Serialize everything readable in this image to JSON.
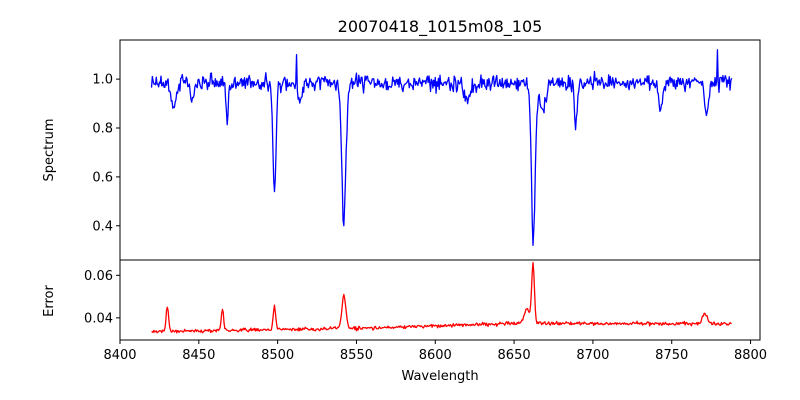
{
  "chart_data": {
    "type": "line",
    "title": "20070418_1015m08_105",
    "xlabel": "Wavelength",
    "xlim": [
      8400,
      8806
    ],
    "xticks": [
      8400,
      8450,
      8500,
      8550,
      8600,
      8650,
      8700,
      8750,
      8800
    ],
    "panels": [
      {
        "name": "spectrum",
        "ylabel": "Spectrum",
        "ylim": [
          0.26,
          1.16
        ],
        "yticks": [
          0.4,
          0.6,
          0.8,
          1.0
        ],
        "ytick_labels": [
          "0.4",
          "0.6",
          "0.8",
          "1.0"
        ],
        "color": "#0000ff",
        "x_start": 8420,
        "x_end": 8788,
        "n_points": 737,
        "continuum": [
          [
            8420,
            0.985
          ],
          [
            8788,
            0.985
          ]
        ],
        "noise_amplitude": 0.05,
        "features": [
          {
            "x": 8434,
            "depth": 0.1,
            "width": 1.6
          },
          {
            "x": 8446,
            "depth": 0.08,
            "width": 1.2
          },
          {
            "x": 8468,
            "depth": 0.16,
            "width": 0.7
          },
          {
            "x": 8498.0,
            "depth": 0.44,
            "width": 1.0
          },
          {
            "x": 8514,
            "depth": 0.06,
            "width": 1.5
          },
          {
            "x": 8542.0,
            "depth": 0.57,
            "width": 1.3
          },
          {
            "x": 8620,
            "depth": 0.07,
            "width": 2.0
          },
          {
            "x": 8662.2,
            "depth": 0.65,
            "width": 1.2
          },
          {
            "x": 8668,
            "depth": 0.12,
            "width": 1.8
          },
          {
            "x": 8689,
            "depth": 0.19,
            "width": 0.8
          },
          {
            "x": 8743,
            "depth": 0.1,
            "width": 1.2
          },
          {
            "x": 8772,
            "depth": 0.14,
            "width": 1.2
          }
        ],
        "extremes": [
          [
            8498,
            0.54
          ],
          [
            8542,
            0.4
          ],
          [
            8662,
            0.32
          ],
          [
            8512,
            1.1
          ],
          [
            8779,
            1.12
          ]
        ]
      },
      {
        "name": "error",
        "ylabel": "Error",
        "ylim": [
          0.0296,
          0.0672
        ],
        "yticks": [
          0.04,
          0.06
        ],
        "ytick_labels": [
          "0.04",
          "0.06"
        ],
        "color": "#ff0000",
        "x_start": 8420,
        "x_end": 8788,
        "n_points": 737,
        "continuum": [
          [
            8420,
            0.0335
          ],
          [
            8560,
            0.0352
          ],
          [
            8650,
            0.0375
          ],
          [
            8788,
            0.0372
          ]
        ],
        "noise_amplitude": 0.0012,
        "features": [
          {
            "x": 8430,
            "height": 0.011,
            "width": 0.8
          },
          {
            "x": 8465,
            "height": 0.009,
            "width": 0.8
          },
          {
            "x": 8498,
            "height": 0.011,
            "width": 0.8
          },
          {
            "x": 8542,
            "height": 0.015,
            "width": 1.3
          },
          {
            "x": 8662,
            "height": 0.028,
            "width": 0.9
          },
          {
            "x": 8658,
            "height": 0.007,
            "width": 1.6
          },
          {
            "x": 8771,
            "height": 0.005,
            "width": 1.5
          }
        ],
        "extremes": [
          [
            8662,
            0.066
          ],
          [
            8542,
            0.051
          ],
          [
            8430,
            0.045
          ],
          [
            8465,
            0.044
          ],
          [
            8498,
            0.046
          ]
        ]
      }
    ]
  }
}
